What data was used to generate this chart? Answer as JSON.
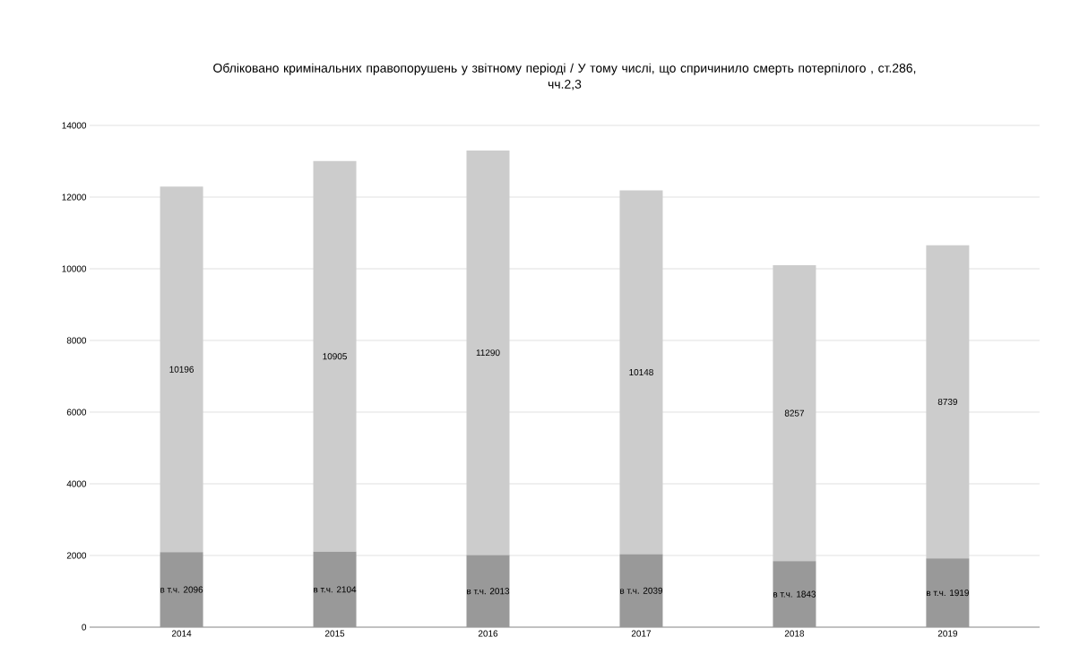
{
  "chart_data": {
    "type": "bar",
    "stacked": true,
    "title": "Обліковано кримінальних правопорушень у звітному періоді / У тому числі, що спричинило смерть потерпілого , ст.286, чч.2,3",
    "categories": [
      "2014",
      "2015",
      "2016",
      "2017",
      "2018",
      "2019"
    ],
    "series": [
      {
        "color": "#999999",
        "values": [
          2096,
          2104,
          2013,
          2039,
          1843,
          1919
        ],
        "value_labels": [
          "в т.ч. 2096",
          "в т.ч. 2104",
          "в т.ч. 2013",
          "в т.ч. 2039",
          "в т.ч. 1843",
          "в т.ч. 1919"
        ]
      },
      {
        "color": "#cccccc",
        "values": [
          10196,
          10905,
          11290,
          10148,
          8257,
          8739
        ],
        "value_labels": [
          "10196",
          "10905",
          "11290",
          "10148",
          "8257",
          "8739"
        ]
      }
    ],
    "ylim": [
      0,
      14000
    ],
    "yticks": [
      0,
      2000,
      4000,
      6000,
      8000,
      10000,
      12000,
      14000
    ],
    "grid": "y"
  }
}
